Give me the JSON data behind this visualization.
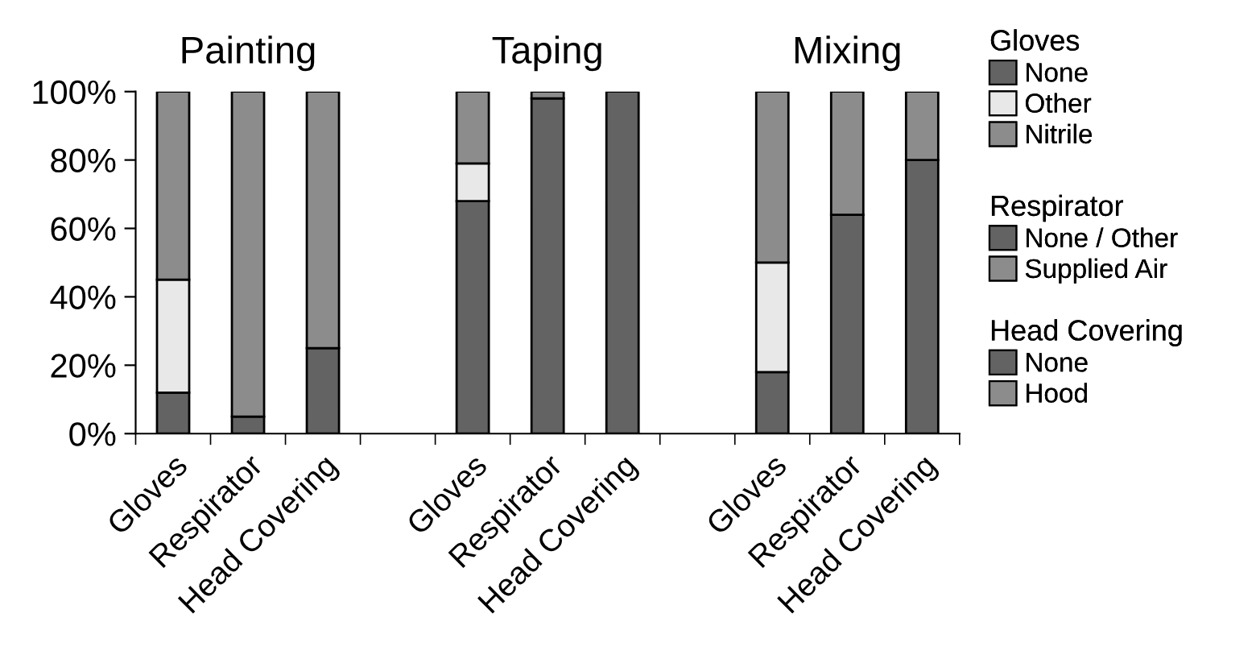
{
  "chart_data": {
    "type": "bar",
    "stacked": true,
    "categories": [
      "Gloves",
      "Respirator",
      "Head Covering",
      null,
      "Gloves",
      "Respirator",
      "Head Covering",
      null,
      "Gloves",
      "Respirator",
      "Head Covering"
    ],
    "series": [
      {
        "name": "None",
        "color": "#636363",
        "values": [
          12,
          null,
          null,
          null,
          68,
          null,
          null,
          null,
          18,
          null,
          null
        ]
      },
      {
        "name": "Other",
        "color": "#e8e8e8",
        "values": [
          33,
          null,
          null,
          null,
          11,
          null,
          null,
          null,
          32,
          null,
          null
        ]
      },
      {
        "name": "Nitrile",
        "color": "#8c8c8c",
        "values": [
          55,
          null,
          null,
          null,
          21,
          null,
          null,
          null,
          50,
          null,
          null
        ]
      },
      {
        "name": "None / Other",
        "color": "#636363",
        "values": [
          null,
          5,
          null,
          null,
          null,
          98,
          null,
          null,
          null,
          64,
          null
        ]
      },
      {
        "name": "Supplied Air",
        "color": "#8c8c8c",
        "values": [
          null,
          95,
          null,
          null,
          null,
          2,
          null,
          null,
          null,
          36,
          null
        ]
      },
      {
        "name": "None",
        "color": "#636363",
        "values": [
          null,
          null,
          25,
          null,
          null,
          null,
          100,
          null,
          null,
          null,
          80
        ]
      },
      {
        "name": "Hood",
        "color": "#8c8c8c",
        "values": [
          null,
          null,
          75,
          null,
          null,
          null,
          null,
          null,
          null,
          null,
          20
        ]
      }
    ],
    "ylim": [
      0,
      100
    ],
    "yticks": [
      {
        "value": 0,
        "label": "0%"
      },
      {
        "value": 20,
        "label": "20%"
      },
      {
        "value": 40,
        "label": "40%"
      },
      {
        "value": 60,
        "label": "60%"
      },
      {
        "value": 80,
        "label": "80%"
      },
      {
        "value": 100,
        "label": "100%"
      }
    ],
    "annotations": [
      "Painting",
      "Taping",
      "Mixing",
      "Gloves",
      "Respirator",
      "Head Covering"
    ],
    "legend": "right",
    "grid": false
  }
}
